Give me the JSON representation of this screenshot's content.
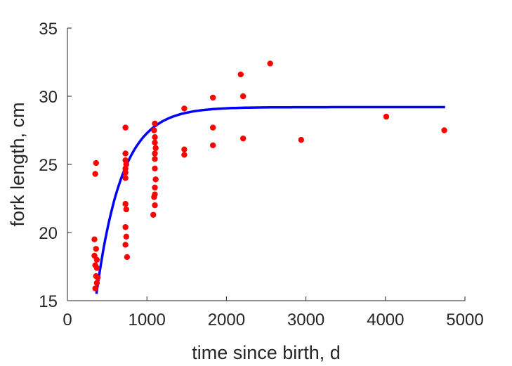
{
  "chart_data": {
    "type": "scatter",
    "xlabel": "time since birth, d",
    "ylabel": "fork length, cm",
    "xlim": [
      0,
      5000
    ],
    "ylim": [
      15,
      35
    ],
    "xticks": [
      0,
      1000,
      2000,
      3000,
      4000,
      5000
    ],
    "yticks": [
      15,
      20,
      25,
      30,
      35
    ],
    "xtick_labels": [
      "0",
      "1000",
      "2000",
      "3000",
      "4000",
      "5000"
    ],
    "ytick_labels": [
      "15",
      "20",
      "25",
      "30",
      "35"
    ],
    "grid": false,
    "colors": {
      "points": "#ff0000",
      "curve": "#0000ff",
      "axis": "#262626"
    },
    "series": [
      {
        "type": "scatter",
        "points": [
          [
            360,
            25.1
          ],
          [
            350,
            24.3
          ],
          [
            340,
            19.5
          ],
          [
            360,
            18.8
          ],
          [
            340,
            18.3
          ],
          [
            370,
            18.0
          ],
          [
            350,
            17.6
          ],
          [
            370,
            17.4
          ],
          [
            360,
            16.8
          ],
          [
            380,
            16.7
          ],
          [
            370,
            16.3
          ],
          [
            350,
            15.9
          ],
          [
            730,
            27.7
          ],
          [
            730,
            25.8
          ],
          [
            730,
            25.3
          ],
          [
            740,
            25.0
          ],
          [
            730,
            24.7
          ],
          [
            730,
            24.4
          ],
          [
            730,
            24.0
          ],
          [
            730,
            22.1
          ],
          [
            740,
            21.7
          ],
          [
            730,
            20.4
          ],
          [
            740,
            19.7
          ],
          [
            730,
            19.1
          ],
          [
            750,
            18.2
          ],
          [
            1100,
            28.0
          ],
          [
            1090,
            27.5
          ],
          [
            1100,
            27.0
          ],
          [
            1100,
            26.6
          ],
          [
            1110,
            26.2
          ],
          [
            1100,
            25.8
          ],
          [
            1100,
            25.4
          ],
          [
            1100,
            24.7
          ],
          [
            1110,
            23.9
          ],
          [
            1100,
            23.3
          ],
          [
            1100,
            22.8
          ],
          [
            1090,
            22.6
          ],
          [
            1100,
            22.0
          ],
          [
            1080,
            21.3
          ],
          [
            1470,
            29.1
          ],
          [
            1470,
            26.1
          ],
          [
            1470,
            25.7
          ],
          [
            1830,
            29.9
          ],
          [
            1830,
            27.7
          ],
          [
            1830,
            26.4
          ],
          [
            2180,
            31.6
          ],
          [
            2210,
            30.0
          ],
          [
            2210,
            26.9
          ],
          [
            2550,
            32.4
          ],
          [
            2940,
            26.8
          ],
          [
            4010,
            28.5
          ],
          [
            4740,
            27.5
          ]
        ]
      },
      {
        "type": "line",
        "model": {
          "Linf": 29.2,
          "L0": 15.5,
          "start": 365,
          "end": 4750,
          "rate_per_day": 0.0031
        }
      }
    ]
  }
}
